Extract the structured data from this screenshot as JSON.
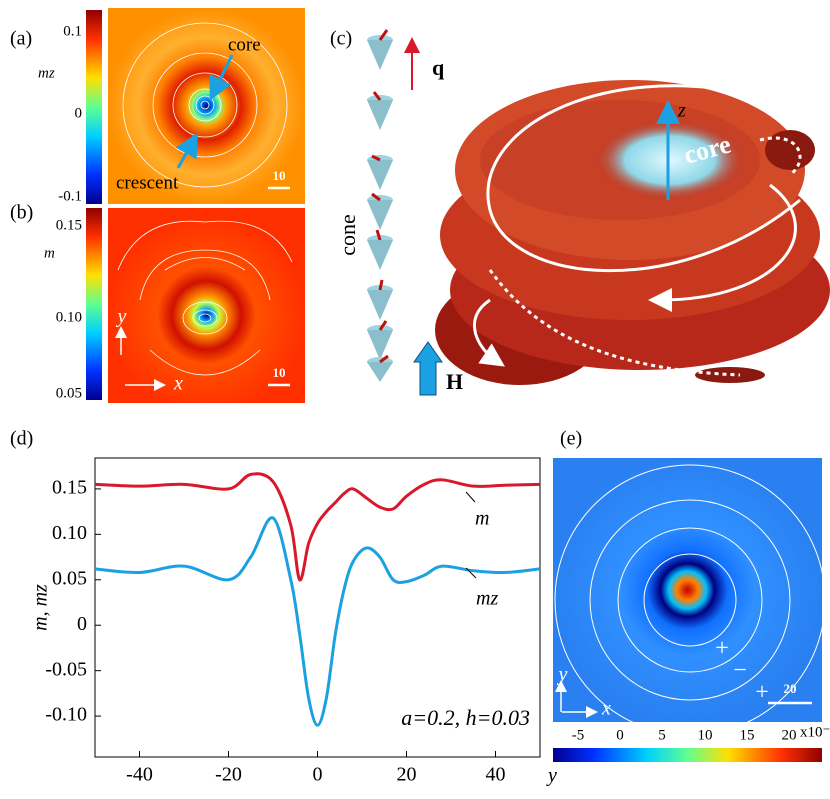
{
  "panels": {
    "a": {
      "label": "(a)",
      "colorbar_label": "mz",
      "colorbar_ticks": [
        "0.1",
        "0",
        "-0.1"
      ],
      "annotations": [
        "core",
        "crescent"
      ],
      "scale": "10"
    },
    "b": {
      "label": "(b)",
      "colorbar_label": "m",
      "colorbar_ticks": [
        "0.15",
        "0.10",
        "0.05"
      ],
      "axes": [
        "y",
        "x"
      ],
      "scale": "10"
    },
    "c": {
      "label": "(c)",
      "texts": [
        "q",
        "z",
        "core",
        "cone",
        "H"
      ]
    },
    "d": {
      "label": "(d)"
    },
    "e": {
      "label": "(e)",
      "colorbar_ticks": [
        "-5",
        "0",
        "5",
        "10",
        "15",
        "20"
      ],
      "multiplier": "x10⁻",
      "signs": [
        "+",
        "−",
        "+"
      ],
      "axes": [
        "y",
        "x"
      ],
      "scale": "20"
    }
  },
  "chart_data": {
    "type": "line",
    "x_label": "y",
    "y_label": "m, mz",
    "annotation": "a=0.2, h=0.03",
    "x": [
      -50,
      -40,
      -30,
      -20,
      -15,
      -10,
      -6,
      -4,
      -2,
      0,
      2,
      4,
      6,
      8,
      11,
      14,
      17,
      20,
      24,
      28,
      35,
      42,
      50
    ],
    "series": [
      {
        "name": "m",
        "color": "#d7192b",
        "values": [
          0.155,
          0.153,
          0.155,
          0.15,
          0.166,
          0.158,
          0.11,
          0.05,
          0.09,
          0.112,
          0.125,
          0.135,
          0.145,
          0.15,
          0.14,
          0.13,
          0.128,
          0.142,
          0.155,
          0.16,
          0.153,
          0.154,
          0.155
        ]
      },
      {
        "name": "mz",
        "color": "#1ba1e2",
        "values": [
          0.062,
          0.058,
          0.065,
          0.05,
          0.075,
          0.118,
          0.05,
          -0.01,
          -0.08,
          -0.11,
          -0.08,
          -0.01,
          0.04,
          0.07,
          0.085,
          0.075,
          0.05,
          0.048,
          0.055,
          0.065,
          0.06,
          0.058,
          0.062
        ]
      }
    ],
    "xlim": [
      -50,
      50
    ],
    "xticks": [
      -40,
      -20,
      0,
      20,
      40
    ],
    "ylim": [
      -0.145,
      0.184
    ],
    "yticks": [
      {
        "value": -0.1,
        "label": "-0.10"
      },
      {
        "value": -0.05,
        "label": "-0.05"
      },
      0,
      {
        "value": 0.05,
        "label": "0.05"
      },
      {
        "value": 0.1,
        "label": "0.10"
      },
      {
        "value": 0.15,
        "label": "0.15"
      }
    ]
  }
}
